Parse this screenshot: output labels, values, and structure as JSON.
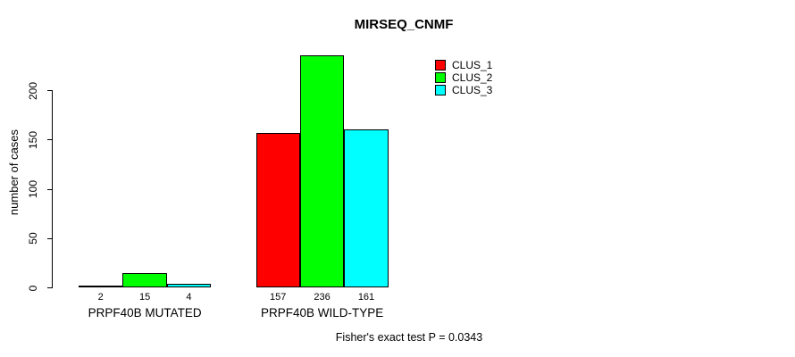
{
  "chart_data": {
    "type": "bar",
    "title": "MIRSEQ_CNMF",
    "ylabel": "number of cases",
    "xlabel": "",
    "categories": [
      "PRPF40B MUTATED",
      "PRPF40B WILD-TYPE"
    ],
    "series": [
      {
        "name": "CLUS_1",
        "color": "#ff0000",
        "values": [
          2,
          157
        ]
      },
      {
        "name": "CLUS_2",
        "color": "#00ff00",
        "values": [
          15,
          236
        ]
      },
      {
        "name": "CLUS_3",
        "color": "#00ffff",
        "values": [
          4,
          161
        ]
      }
    ],
    "bar_value_labels": [
      [
        "2",
        "15",
        "4"
      ],
      [
        "157",
        "236",
        "161"
      ]
    ],
    "y_ticks": [
      0,
      50,
      100,
      150,
      200
    ],
    "ylim": [
      0,
      240
    ],
    "grid": false,
    "legend_position": "top-right",
    "legend_entries": [
      "CLUS_1",
      "CLUS_2",
      "CLUS_3"
    ]
  },
  "footer": {
    "note": "Fisher's exact test P = 0.0343"
  }
}
